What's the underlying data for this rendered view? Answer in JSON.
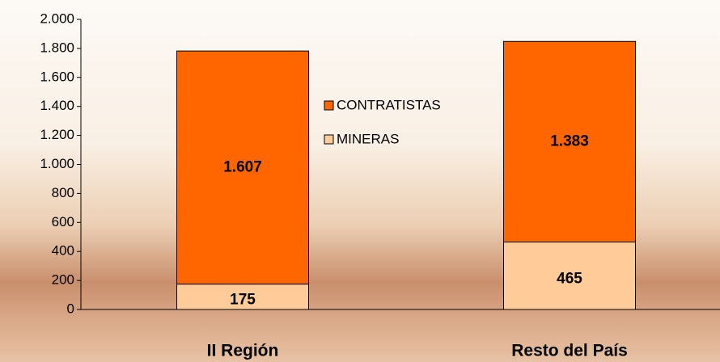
{
  "chart_data": {
    "type": "stacked_bar",
    "categories": [
      "II Región",
      "Resto del País"
    ],
    "series": [
      {
        "name": "MINERAS",
        "color": "#FFCC99",
        "values": [
          175,
          465
        ],
        "value_labels": [
          "175",
          "465"
        ]
      },
      {
        "name": "CONTRATISTAS",
        "color": "#FF6600",
        "values": [
          1607,
          1383
        ],
        "value_labels": [
          "1.607",
          "1.383"
        ]
      }
    ],
    "ylim": [
      0,
      2000
    ],
    "yticks": [
      0,
      200,
      400,
      600,
      800,
      {
        "value": 1000,
        "label": "1.000"
      },
      {
        "value": 1200,
        "label": "1.200"
      },
      {
        "value": 1400,
        "label": "1.400"
      },
      {
        "value": 1600,
        "label": "1.600"
      },
      {
        "value": 1800,
        "label": "1.800"
      },
      {
        "value": 2000,
        "label": "2.000"
      }
    ],
    "grid": false
  }
}
